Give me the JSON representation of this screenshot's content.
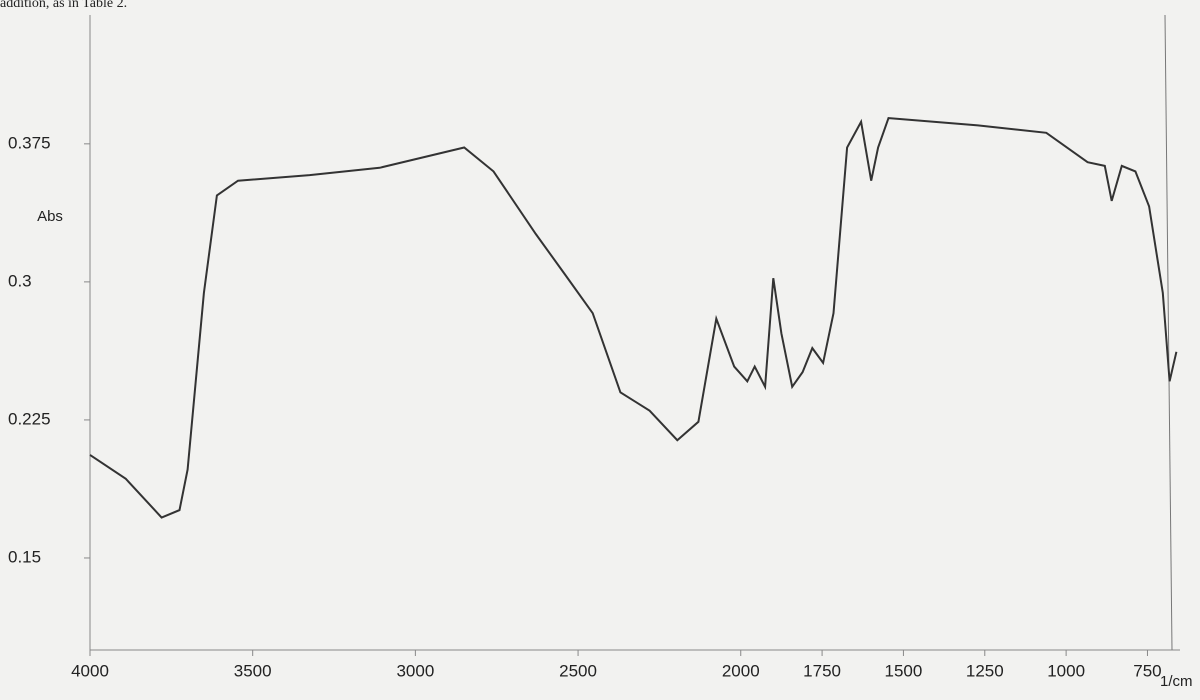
{
  "caption": "addition, as in Table 2.",
  "chart_data": {
    "type": "line",
    "ylabel": "Abs",
    "xlabel": "1/cm",
    "x": [
      4000,
      3890,
      3780,
      3725,
      3700,
      3650,
      3610,
      3545,
      3325,
      3110,
      2850,
      2760,
      2630,
      2540,
      2455,
      2370,
      2280,
      2195,
      2130,
      2075,
      2020,
      1980,
      1957,
      1925,
      1900,
      1875,
      1842,
      1810,
      1780,
      1747,
      1715,
      1673,
      1630,
      1599,
      1578,
      1546,
      1271,
      1061,
      934,
      881,
      860,
      829,
      787,
      745,
      703,
      682,
      661
    ],
    "values": [
      0.206,
      0.193,
      0.172,
      0.176,
      0.198,
      0.294,
      0.347,
      0.355,
      0.358,
      0.362,
      0.373,
      0.36,
      0.326,
      0.304,
      0.283,
      0.24,
      0.23,
      0.214,
      0.224,
      0.28,
      0.254,
      0.246,
      0.254,
      0.243,
      0.302,
      0.272,
      0.243,
      0.251,
      0.264,
      0.256,
      0.283,
      0.373,
      0.387,
      0.355,
      0.373,
      0.389,
      0.385,
      0.381,
      0.365,
      0.363,
      0.344,
      0.363,
      0.36,
      0.341,
      0.294,
      0.246,
      0.262
    ],
    "color": "#333333",
    "xlim": [
      4000,
      650
    ],
    "ylim": [
      0.1,
      0.445
    ],
    "xticks": [
      4000,
      3500,
      3000,
      2500,
      2000,
      1750,
      1500,
      1250,
      1000,
      750
    ],
    "yticks": [
      0.15,
      0.225,
      0.3,
      0.375
    ],
    "grid": false
  }
}
